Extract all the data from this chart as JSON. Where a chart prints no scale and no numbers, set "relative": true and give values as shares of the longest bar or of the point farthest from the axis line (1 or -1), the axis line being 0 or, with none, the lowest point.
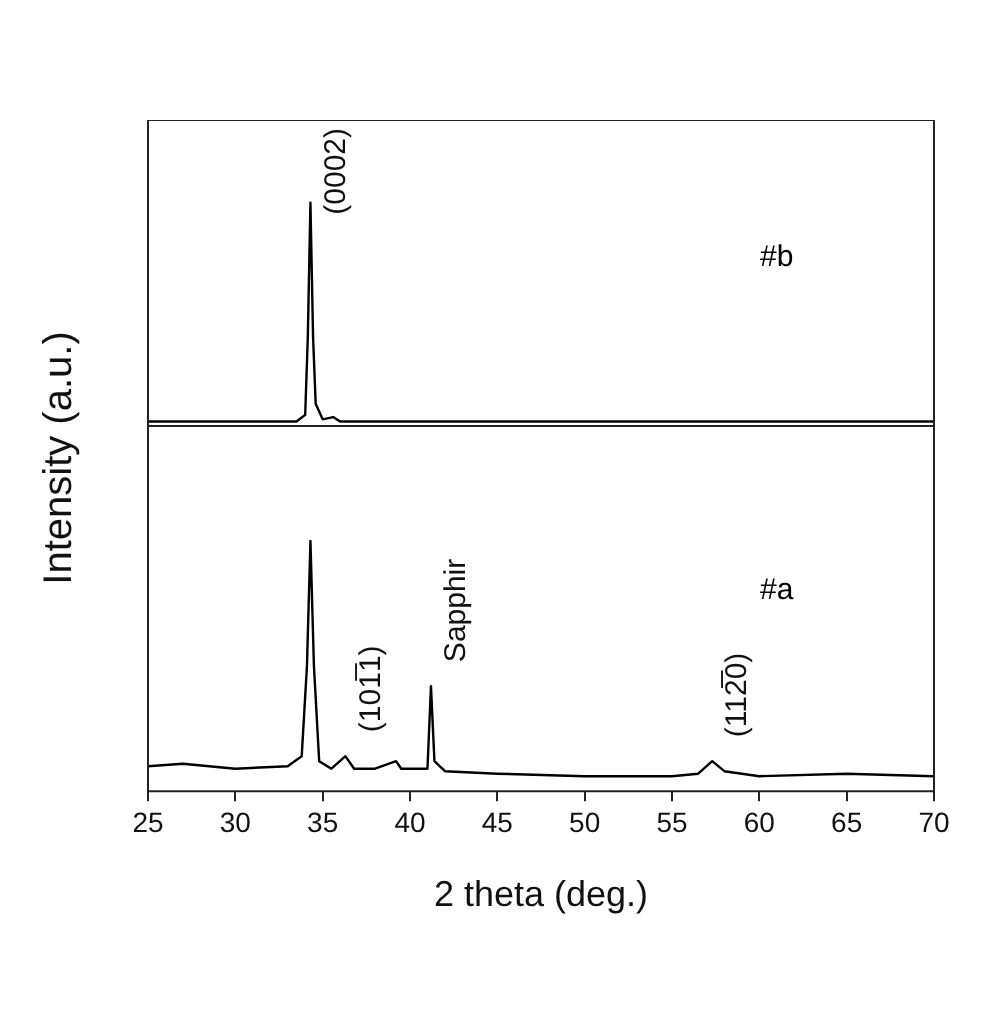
{
  "chart_data": [
    {
      "type": "line",
      "relative": true,
      "ylabel": "Intensity (a.u.)",
      "x": [
        25,
        28,
        31,
        33.5,
        34.0,
        34.15,
        34.3,
        34.45,
        34.6,
        35.0,
        35.6,
        36.0,
        38,
        42,
        46,
        50,
        55,
        60,
        65,
        70
      ],
      "series": [
        {
          "name": "#b",
          "color": "#000000",
          "values": [
            0.02,
            0.02,
            0.02,
            0.02,
            0.05,
            0.4,
            1.0,
            0.4,
            0.1,
            0.03,
            0.04,
            0.02,
            0.02,
            0.02,
            0.02,
            0.02,
            0.02,
            0.02,
            0.02,
            0.02
          ]
        }
      ],
      "xlim": [
        25,
        70
      ],
      "xticks": [
        25,
        30,
        35,
        40,
        45,
        50,
        55,
        60,
        65,
        70
      ],
      "tick_labels": false,
      "legend": false,
      "marker": "none",
      "annotations": [
        {
          "text": "(0002)",
          "x": 34.3,
          "y": 1.0
        }
      ]
    },
    {
      "type": "line",
      "relative": true,
      "xlabel": "2 theta (deg.)",
      "x": [
        25,
        27,
        30,
        33,
        33.8,
        34.1,
        34.3,
        34.5,
        34.8,
        35.5,
        36.3,
        36.8,
        38,
        39.2,
        39.5,
        41.0,
        41.2,
        41.4,
        42,
        45,
        50,
        55,
        56.5,
        57.3,
        58,
        60,
        65,
        70
      ],
      "series": [
        {
          "name": "#a",
          "color": "#000000",
          "values": [
            0.1,
            0.11,
            0.09,
            0.1,
            0.14,
            0.5,
            1.0,
            0.5,
            0.12,
            0.09,
            0.14,
            0.09,
            0.09,
            0.12,
            0.09,
            0.09,
            0.42,
            0.12,
            0.08,
            0.07,
            0.06,
            0.06,
            0.07,
            0.12,
            0.08,
            0.06,
            0.07,
            0.06
          ]
        }
      ],
      "xlim": [
        25,
        70
      ],
      "xticks": [
        25,
        30,
        35,
        40,
        45,
        50,
        55,
        60,
        65,
        70
      ],
      "tick_labels": "x",
      "legend": false,
      "marker": "none",
      "annotations": [
        {
          "text": "(101̅1)",
          "x": 36.3,
          "y": 0.14
        },
        {
          "text": "Sapphir",
          "x": 41.2,
          "y": 0.42
        },
        {
          "text": "(112̅0)",
          "x": 57.3,
          "y": 0.12
        }
      ]
    }
  ]
}
